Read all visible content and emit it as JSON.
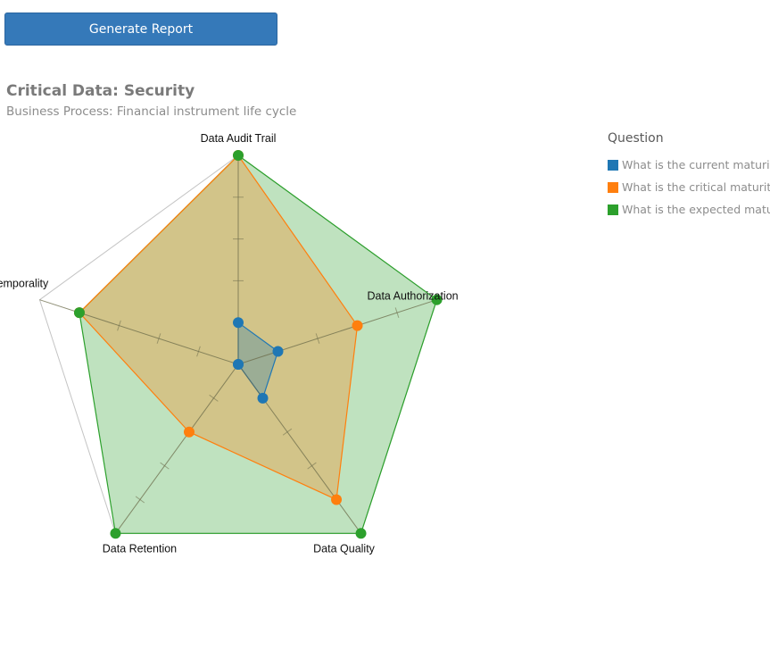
{
  "toolbar": {
    "generate_label": "Generate Report"
  },
  "chart_data": {
    "type": "radar",
    "title": "Critical Data: Security",
    "subtitle": "Business Process: Financial instrument life cycle",
    "axes": [
      "Data Audit Trail",
      "Data Authorization",
      "Data Quality",
      "Data Retention",
      "Data Temporality"
    ],
    "rmax": 5,
    "grid": false,
    "legend": {
      "title": "Question",
      "position": "right"
    },
    "series": [
      {
        "name": "What is the current maturity",
        "color": "#1f77b4",
        "values": [
          1,
          1,
          1,
          0,
          0
        ]
      },
      {
        "name": "What is the critical maturity",
        "color": "#ff7f0e",
        "values": [
          5,
          3,
          4,
          2,
          4
        ]
      },
      {
        "name": "What is the expected maturi",
        "color": "#2ca02c",
        "values": [
          5,
          5,
          5,
          5,
          4
        ]
      }
    ]
  }
}
